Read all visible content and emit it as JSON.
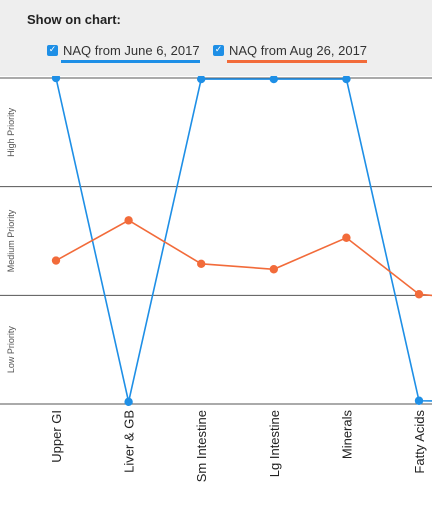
{
  "panel": {
    "title": "Show on chart:",
    "legend": [
      {
        "label": "NAQ from June 6, 2017",
        "checked": true,
        "color": "#1e8fe6",
        "checkbox_color": "#1e8fe6"
      },
      {
        "label": "NAQ from Aug 26, 2017",
        "checked": true,
        "color": "#f26b3a",
        "checkbox_color": "#1e8fe6"
      }
    ]
  },
  "chart_data": {
    "type": "line",
    "categories": [
      "Upper GI",
      "Liver & GB",
      "Sm Intestine",
      "Lg Intestine",
      "Minerals",
      "Fatty Acids"
    ],
    "bands": [
      "High Priority",
      "Medium Priority",
      "Low Priority"
    ],
    "ylim": [
      0,
      3
    ],
    "grid": true,
    "series": [
      {
        "name": "NAQ from June 6, 2017",
        "color": "#1e8fe6",
        "values": [
          3.0,
          0.02,
          2.99,
          2.99,
          2.99,
          0.03
        ]
      },
      {
        "name": "NAQ from Aug 26, 2017",
        "color": "#f26b3a",
        "values": [
          1.32,
          1.69,
          1.29,
          1.24,
          1.53,
          1.01
        ]
      }
    ],
    "partial_next": [
      {
        "series": 0,
        "value": 0.02
      },
      {
        "series": 1,
        "value": 0.95
      }
    ]
  }
}
